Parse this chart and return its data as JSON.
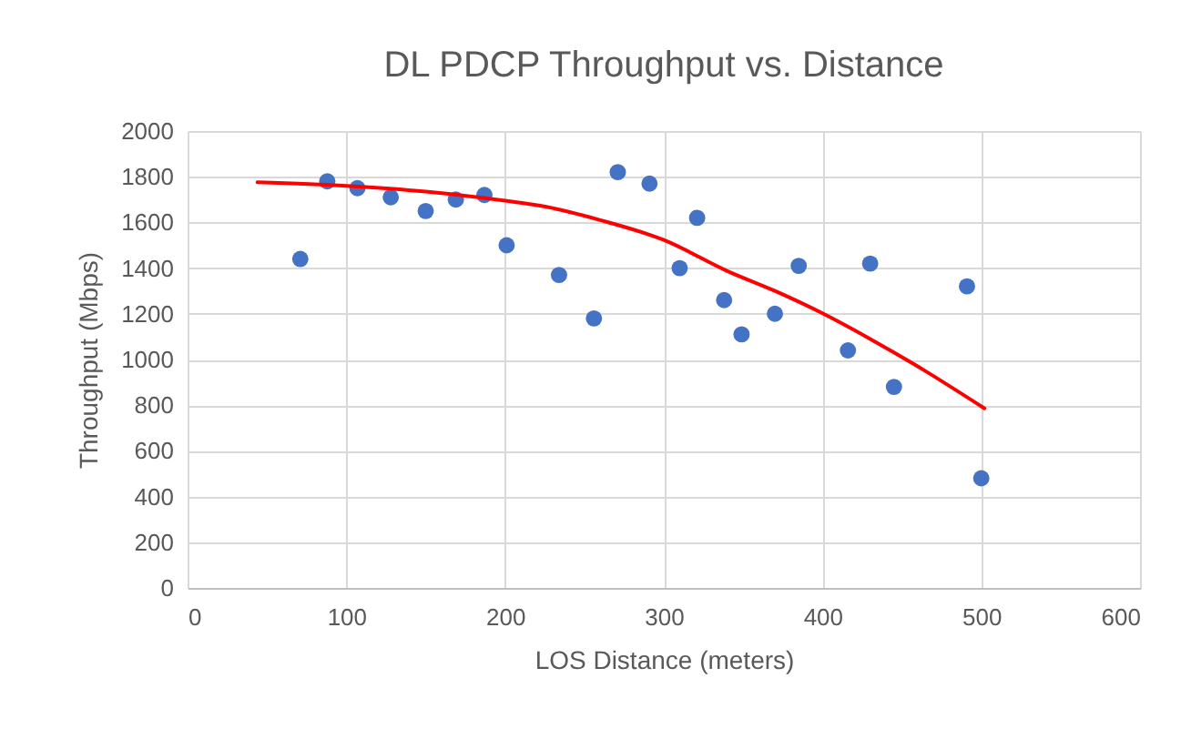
{
  "chart_data": {
    "type": "scatter",
    "title": "DL PDCP Throughput vs. Distance",
    "xlabel": "LOS Distance (meters)",
    "ylabel": "Throughput (Mbps)",
    "x": [
      71,
      88,
      107,
      128,
      150,
      169,
      187,
      201,
      234,
      256,
      271,
      291,
      310,
      321,
      338,
      349,
      370,
      385,
      416,
      430,
      445,
      491,
      500
    ],
    "series": [
      {
        "color": "#4472c4",
        "values": [
          1440,
          1780,
          1750,
          1710,
          1650,
          1700,
          1720,
          1500,
          1370,
          1180,
          1820,
          1770,
          1400,
          1620,
          1260,
          1110,
          1200,
          1410,
          1040,
          1420,
          880,
          1320,
          480
        ]
      },
      {
        "type": "line",
        "marker": "none",
        "color": "#ff0000",
        "x": [
          44,
          100,
          150,
          200,
          226,
          260,
          300,
          340,
          370,
          400,
          430,
          458,
          502
        ],
        "values": [
          1776,
          1760,
          1735,
          1695,
          1668,
          1610,
          1523,
          1387,
          1300,
          1202,
          1090,
          978,
          786
        ]
      }
    ],
    "xlim": [
      0,
      600
    ],
    "xticks": [
      0,
      100,
      200,
      300,
      400,
      500,
      600
    ],
    "ylim": [
      0,
      2000
    ],
    "yticks": [
      0,
      200,
      400,
      600,
      800,
      1000,
      1200,
      1400,
      1600,
      1800,
      2000
    ],
    "grid": true,
    "marker": "circle"
  }
}
